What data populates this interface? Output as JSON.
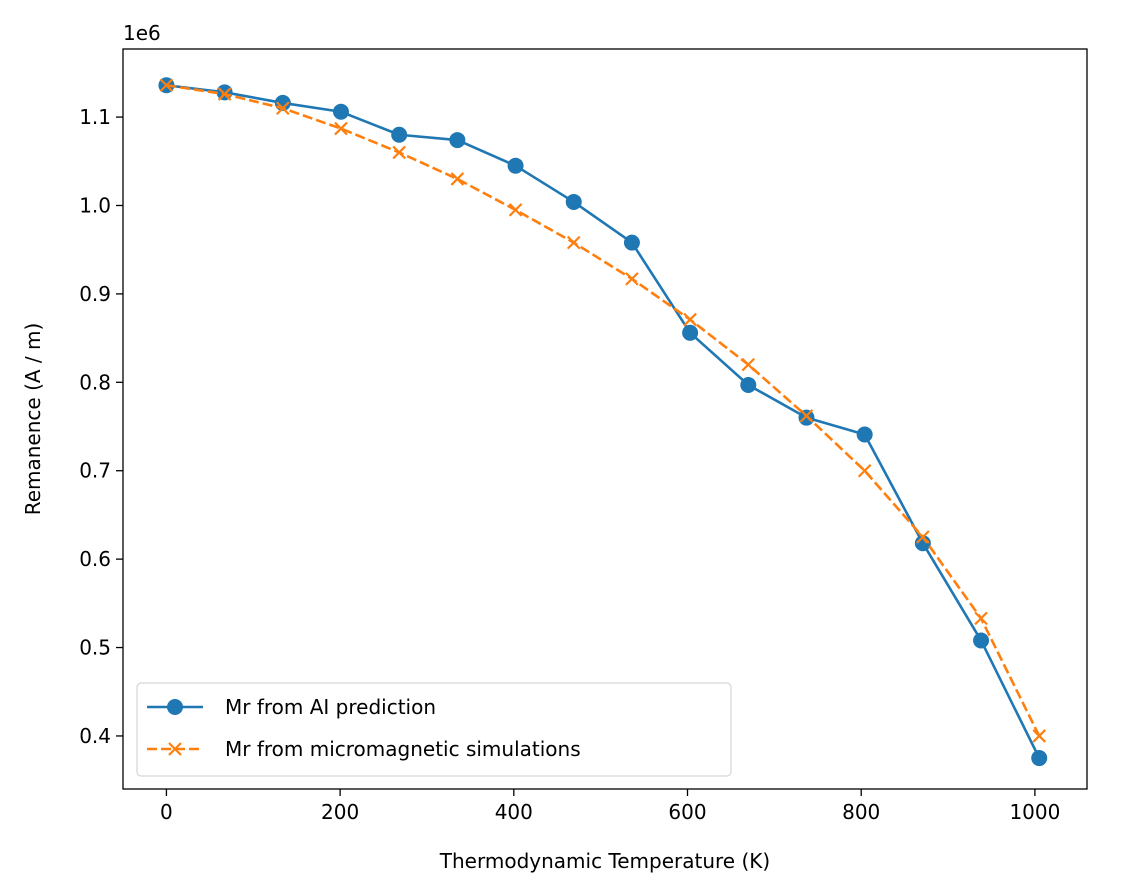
{
  "chart_data": {
    "type": "line",
    "title": "",
    "xlabel": "Thermodynamic Temperature (K)",
    "ylabel": "Remanence (A / m)",
    "y_offset_label": "1e6",
    "xlim": [
      -50,
      1060
    ],
    "ylim": [
      0.34,
      1.177
    ],
    "x_ticks": [
      0,
      200,
      400,
      600,
      800,
      1000
    ],
    "x_tick_labels": [
      "0",
      "200",
      "400",
      "600",
      "800",
      "1000"
    ],
    "y_ticks": [
      0.4,
      0.5,
      0.6,
      0.7,
      0.8,
      0.9,
      1.0,
      1.1
    ],
    "y_tick_labels": [
      "0.4",
      "0.5",
      "0.6",
      "0.7",
      "0.8",
      "0.9",
      "1.0",
      "1.1"
    ],
    "x": [
      0,
      67,
      134,
      201,
      268,
      335,
      402,
      469,
      536,
      603,
      670,
      737,
      804,
      871,
      938,
      1005
    ],
    "series": [
      {
        "name": "Mr from AI prediction",
        "color": "#1f77b4",
        "line_style": "solid",
        "marker": "circle",
        "values": [
          1.136,
          1.128,
          1.116,
          1.106,
          1.08,
          1.074,
          1.045,
          1.004,
          0.958,
          0.856,
          0.797,
          0.76,
          0.741,
          0.618,
          0.508,
          0.375
        ]
      },
      {
        "name": "Mr from micromagnetic simulations",
        "color": "#ff7f0e",
        "line_style": "dashed",
        "marker": "x",
        "values": [
          1.136,
          1.126,
          1.11,
          1.087,
          1.06,
          1.03,
          0.995,
          0.958,
          0.917,
          0.871,
          0.82,
          0.762,
          0.7,
          0.625,
          0.533,
          0.4
        ]
      }
    ],
    "legend_position": "lower-left",
    "grid": false
  }
}
